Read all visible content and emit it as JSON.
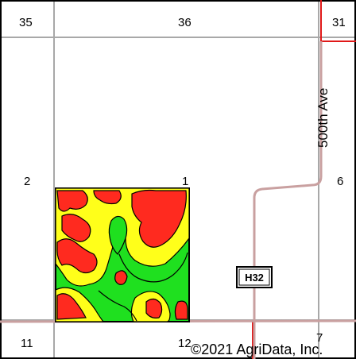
{
  "map": {
    "section_labels": {
      "s35": "35",
      "s36": "36",
      "s31": "31",
      "s2": "2",
      "s1": "1",
      "s6": "6",
      "s11": "11",
      "s12": "12",
      "s7": "7"
    },
    "road_label": "500th Ave",
    "highway_shield": "H32",
    "copyright": "©2021 AgriData, Inc.",
    "colors": {
      "high": "#ff2a1f",
      "medium": "#ffff1a",
      "low": "#1fe01f",
      "contour": "#000000",
      "road": "#c9a0a0",
      "county_line": "#e01818",
      "section_line": "#a8a8a8"
    }
  }
}
